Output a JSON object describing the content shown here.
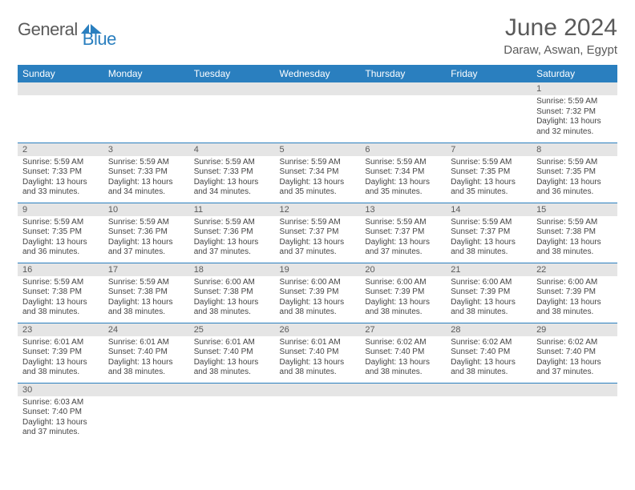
{
  "brand": {
    "part1": "General",
    "part2": "Blue",
    "part1_color": "#5a5a5a",
    "part2_color": "#2a7fbf"
  },
  "title": "June 2024",
  "location": "Daraw, Aswan, Egypt",
  "colors": {
    "header_bg": "#2a7fbf",
    "header_text": "#ffffff",
    "daynum_bg": "#e5e5e5",
    "text": "#444444",
    "rule": "#2a7fbf"
  },
  "day_headers": [
    "Sunday",
    "Monday",
    "Tuesday",
    "Wednesday",
    "Thursday",
    "Friday",
    "Saturday"
  ],
  "weeks": [
    [
      {
        "n": "",
        "sr": "",
        "ss": "",
        "dl": ""
      },
      {
        "n": "",
        "sr": "",
        "ss": "",
        "dl": ""
      },
      {
        "n": "",
        "sr": "",
        "ss": "",
        "dl": ""
      },
      {
        "n": "",
        "sr": "",
        "ss": "",
        "dl": ""
      },
      {
        "n": "",
        "sr": "",
        "ss": "",
        "dl": ""
      },
      {
        "n": "",
        "sr": "",
        "ss": "",
        "dl": ""
      },
      {
        "n": "1",
        "sr": "Sunrise: 5:59 AM",
        "ss": "Sunset: 7:32 PM",
        "dl": "Daylight: 13 hours and 32 minutes."
      }
    ],
    [
      {
        "n": "2",
        "sr": "Sunrise: 5:59 AM",
        "ss": "Sunset: 7:33 PM",
        "dl": "Daylight: 13 hours and 33 minutes."
      },
      {
        "n": "3",
        "sr": "Sunrise: 5:59 AM",
        "ss": "Sunset: 7:33 PM",
        "dl": "Daylight: 13 hours and 34 minutes."
      },
      {
        "n": "4",
        "sr": "Sunrise: 5:59 AM",
        "ss": "Sunset: 7:33 PM",
        "dl": "Daylight: 13 hours and 34 minutes."
      },
      {
        "n": "5",
        "sr": "Sunrise: 5:59 AM",
        "ss": "Sunset: 7:34 PM",
        "dl": "Daylight: 13 hours and 35 minutes."
      },
      {
        "n": "6",
        "sr": "Sunrise: 5:59 AM",
        "ss": "Sunset: 7:34 PM",
        "dl": "Daylight: 13 hours and 35 minutes."
      },
      {
        "n": "7",
        "sr": "Sunrise: 5:59 AM",
        "ss": "Sunset: 7:35 PM",
        "dl": "Daylight: 13 hours and 35 minutes."
      },
      {
        "n": "8",
        "sr": "Sunrise: 5:59 AM",
        "ss": "Sunset: 7:35 PM",
        "dl": "Daylight: 13 hours and 36 minutes."
      }
    ],
    [
      {
        "n": "9",
        "sr": "Sunrise: 5:59 AM",
        "ss": "Sunset: 7:35 PM",
        "dl": "Daylight: 13 hours and 36 minutes."
      },
      {
        "n": "10",
        "sr": "Sunrise: 5:59 AM",
        "ss": "Sunset: 7:36 PM",
        "dl": "Daylight: 13 hours and 37 minutes."
      },
      {
        "n": "11",
        "sr": "Sunrise: 5:59 AM",
        "ss": "Sunset: 7:36 PM",
        "dl": "Daylight: 13 hours and 37 minutes."
      },
      {
        "n": "12",
        "sr": "Sunrise: 5:59 AM",
        "ss": "Sunset: 7:37 PM",
        "dl": "Daylight: 13 hours and 37 minutes."
      },
      {
        "n": "13",
        "sr": "Sunrise: 5:59 AM",
        "ss": "Sunset: 7:37 PM",
        "dl": "Daylight: 13 hours and 37 minutes."
      },
      {
        "n": "14",
        "sr": "Sunrise: 5:59 AM",
        "ss": "Sunset: 7:37 PM",
        "dl": "Daylight: 13 hours and 38 minutes."
      },
      {
        "n": "15",
        "sr": "Sunrise: 5:59 AM",
        "ss": "Sunset: 7:38 PM",
        "dl": "Daylight: 13 hours and 38 minutes."
      }
    ],
    [
      {
        "n": "16",
        "sr": "Sunrise: 5:59 AM",
        "ss": "Sunset: 7:38 PM",
        "dl": "Daylight: 13 hours and 38 minutes."
      },
      {
        "n": "17",
        "sr": "Sunrise: 5:59 AM",
        "ss": "Sunset: 7:38 PM",
        "dl": "Daylight: 13 hours and 38 minutes."
      },
      {
        "n": "18",
        "sr": "Sunrise: 6:00 AM",
        "ss": "Sunset: 7:38 PM",
        "dl": "Daylight: 13 hours and 38 minutes."
      },
      {
        "n": "19",
        "sr": "Sunrise: 6:00 AM",
        "ss": "Sunset: 7:39 PM",
        "dl": "Daylight: 13 hours and 38 minutes."
      },
      {
        "n": "20",
        "sr": "Sunrise: 6:00 AM",
        "ss": "Sunset: 7:39 PM",
        "dl": "Daylight: 13 hours and 38 minutes."
      },
      {
        "n": "21",
        "sr": "Sunrise: 6:00 AM",
        "ss": "Sunset: 7:39 PM",
        "dl": "Daylight: 13 hours and 38 minutes."
      },
      {
        "n": "22",
        "sr": "Sunrise: 6:00 AM",
        "ss": "Sunset: 7:39 PM",
        "dl": "Daylight: 13 hours and 38 minutes."
      }
    ],
    [
      {
        "n": "23",
        "sr": "Sunrise: 6:01 AM",
        "ss": "Sunset: 7:39 PM",
        "dl": "Daylight: 13 hours and 38 minutes."
      },
      {
        "n": "24",
        "sr": "Sunrise: 6:01 AM",
        "ss": "Sunset: 7:40 PM",
        "dl": "Daylight: 13 hours and 38 minutes."
      },
      {
        "n": "25",
        "sr": "Sunrise: 6:01 AM",
        "ss": "Sunset: 7:40 PM",
        "dl": "Daylight: 13 hours and 38 minutes."
      },
      {
        "n": "26",
        "sr": "Sunrise: 6:01 AM",
        "ss": "Sunset: 7:40 PM",
        "dl": "Daylight: 13 hours and 38 minutes."
      },
      {
        "n": "27",
        "sr": "Sunrise: 6:02 AM",
        "ss": "Sunset: 7:40 PM",
        "dl": "Daylight: 13 hours and 38 minutes."
      },
      {
        "n": "28",
        "sr": "Sunrise: 6:02 AM",
        "ss": "Sunset: 7:40 PM",
        "dl": "Daylight: 13 hours and 38 minutes."
      },
      {
        "n": "29",
        "sr": "Sunrise: 6:02 AM",
        "ss": "Sunset: 7:40 PM",
        "dl": "Daylight: 13 hours and 37 minutes."
      }
    ],
    [
      {
        "n": "30",
        "sr": "Sunrise: 6:03 AM",
        "ss": "Sunset: 7:40 PM",
        "dl": "Daylight: 13 hours and 37 minutes."
      },
      {
        "n": "",
        "sr": "",
        "ss": "",
        "dl": ""
      },
      {
        "n": "",
        "sr": "",
        "ss": "",
        "dl": ""
      },
      {
        "n": "",
        "sr": "",
        "ss": "",
        "dl": ""
      },
      {
        "n": "",
        "sr": "",
        "ss": "",
        "dl": ""
      },
      {
        "n": "",
        "sr": "",
        "ss": "",
        "dl": ""
      },
      {
        "n": "",
        "sr": "",
        "ss": "",
        "dl": ""
      }
    ]
  ]
}
